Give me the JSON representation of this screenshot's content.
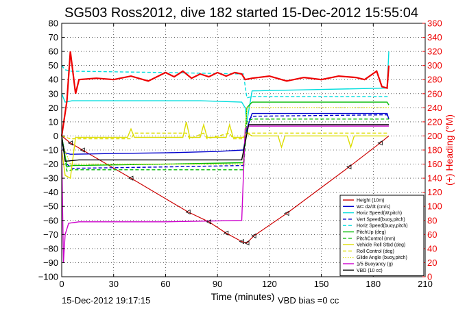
{
  "chart_data": {
    "type": "line",
    "title": "SG503 Ross2012, dive 182 started 15-Dec-2012 15:55:04",
    "xlabel": "Time (minutes)",
    "ylabel": "",
    "ylabel_right": "(+) Heading (°M)",
    "xlim": [
      0,
      210
    ],
    "ylim": [
      -100,
      80
    ],
    "ylim_right": [
      0,
      360
    ],
    "x_ticks": [
      "0",
      "30",
      "60",
      "90",
      "120",
      "150",
      "180",
      "210"
    ],
    "y_ticks": [
      "80",
      "70",
      "60",
      "50",
      "40",
      "30",
      "20",
      "10",
      "0",
      "−10",
      "−20",
      "−30",
      "−40",
      "−50",
      "−60",
      "−70",
      "−80",
      "−90",
      "−100"
    ],
    "y_ticks_right": [
      "360",
      "340",
      "320",
      "300",
      "280",
      "260",
      "240",
      "220",
      "200",
      "180",
      "160",
      "140",
      "120",
      "100",
      "80",
      "60",
      "40",
      "20",
      "0"
    ],
    "grid": true,
    "legend_position": "bottom-right",
    "footer_left": "15-Dec-2012 19:17:15",
    "footer_right": "VBD bias =0 cc",
    "series": [
      {
        "name": "Height (10m)",
        "color": "#cc0000",
        "style": "solid",
        "axis": "left",
        "x": [
          0,
          5,
          12,
          40,
          73,
          85,
          95,
          104,
          107,
          111,
          130,
          166,
          184,
          189
        ],
        "y": [
          0,
          -5,
          -10,
          -30,
          -54,
          -61,
          -69,
          -75,
          -76,
          -71,
          -55,
          -22,
          -5,
          0
        ]
      },
      {
        "name": "W= dz/dt (cm/s)",
        "color": "#0000cc",
        "style": "solid",
        "axis": "left",
        "x": [
          0,
          2,
          5,
          30,
          60,
          90,
          105,
          107,
          110,
          150,
          188,
          189
        ],
        "y": [
          -2,
          -12,
          -13,
          -12.5,
          -12,
          -11,
          -10,
          5,
          16,
          16,
          16,
          12
        ]
      },
      {
        "name": "Horiz Speed(W,pitch)",
        "color": "#00dddd",
        "style": "solid",
        "axis": "left",
        "x": [
          0,
          2,
          6,
          40,
          80,
          104,
          106,
          107,
          110,
          150,
          188,
          189
        ],
        "y": [
          30,
          24,
          25,
          25,
          25,
          24,
          20,
          10,
          32,
          33,
          34,
          60
        ]
      },
      {
        "name": "Vert Speed(buoy,pitch)",
        "color": "#0000cc",
        "style": "dashed",
        "axis": "left",
        "x": [
          0,
          3,
          6,
          60,
          105,
          107,
          110,
          188,
          189
        ],
        "y": [
          -5,
          -20,
          -23,
          -22,
          -21,
          10,
          14,
          15,
          12
        ]
      },
      {
        "name": "Horiz Speed(buoy,pitch)",
        "color": "#00dddd",
        "style": "dashed",
        "axis": "left",
        "x": [
          0,
          2,
          5,
          60,
          105,
          107,
          110,
          188,
          189
        ],
        "y": [
          50,
          47,
          46,
          45,
          44,
          27,
          28,
          28,
          28
        ]
      },
      {
        "name": "PitchUp (deg)",
        "color": "#00bb00",
        "style": "solid",
        "axis": "left",
        "x": [
          0,
          3,
          6,
          60,
          105,
          107,
          110,
          188,
          189
        ],
        "y": [
          0,
          -22,
          -21,
          -20,
          -19,
          20,
          24,
          24,
          22
        ]
      },
      {
        "name": "PitchControl (mm)",
        "color": "#00bb00",
        "style": "dashed",
        "axis": "left",
        "x": [
          0,
          3,
          6,
          60,
          105,
          107,
          110,
          188,
          189
        ],
        "y": [
          0,
          -25,
          -24,
          -24,
          -24,
          10,
          12,
          12,
          12
        ]
      },
      {
        "name": "Vehicle Roll Stbd (deg)",
        "color": "#dddd00",
        "style": "solid",
        "axis": "left",
        "x": [
          0,
          2,
          5,
          8,
          38,
          40,
          42,
          70,
          72,
          74,
          80,
          82,
          84,
          95,
          97,
          99,
          105,
          107,
          110,
          125,
          127,
          129,
          165,
          167,
          169,
          188
        ],
        "y": [
          -10,
          -28,
          -30,
          -1,
          -1,
          5,
          -1,
          -1,
          10,
          -1,
          -1,
          8,
          -1,
          -1,
          8,
          -1,
          -1,
          2,
          0,
          0,
          -8,
          0,
          0,
          -8,
          0,
          0
        ]
      },
      {
        "name": "Roll Control (deg)",
        "color": "#dddd00",
        "style": "dashed",
        "axis": "left",
        "x": [
          0,
          5,
          40,
          42,
          72,
          74,
          82,
          84,
          97,
          99,
          105,
          107,
          110,
          189
        ],
        "y": [
          0,
          -2,
          -2,
          2,
          2,
          -2,
          2,
          -2,
          2,
          -2,
          -2,
          2,
          2,
          2
        ]
      },
      {
        "name": "Glide Angle (buoy,pitch)",
        "color": "#dddd00",
        "style": "dotted",
        "axis": "left",
        "x": [
          0,
          5,
          105,
          107,
          189
        ],
        "y": [
          -5,
          -20,
          -20,
          20,
          20
        ]
      },
      {
        "name": "1/5 Buoyancy (g)",
        "color": "#cc00cc",
        "style": "solid",
        "axis": "left",
        "x": [
          0,
          1,
          2,
          4,
          10,
          60,
          104,
          106,
          108,
          150,
          189
        ],
        "y": [
          -10,
          -90,
          -70,
          -62,
          -61,
          -61,
          -60,
          5,
          7,
          7,
          7
        ]
      },
      {
        "name": "VBD (10 cc)",
        "color": "#000000",
        "style": "solid",
        "axis": "left",
        "x": [
          0,
          2,
          10,
          104,
          106,
          108,
          189
        ],
        "y": [
          0,
          -18,
          -17,
          -17,
          -5,
          8,
          8
        ]
      },
      {
        "name": "Heading (°M)",
        "color": "#ee0000",
        "style": "solid",
        "axis": "right",
        "in_legend": false,
        "x": [
          0,
          3,
          5,
          8,
          10,
          20,
          30,
          40,
          50,
          60,
          65,
          70,
          75,
          80,
          85,
          90,
          95,
          100,
          104,
          106,
          110,
          120,
          130,
          140,
          150,
          160,
          170,
          175,
          182,
          185,
          188,
          189
        ],
        "y": [
          200,
          250,
          320,
          260,
          280,
          282,
          280,
          285,
          278,
          290,
          284,
          292,
          282,
          288,
          284,
          290,
          285,
          290,
          288,
          280,
          282,
          285,
          278,
          283,
          280,
          285,
          283,
          280,
          292,
          270,
          268,
          300
        ]
      }
    ]
  }
}
